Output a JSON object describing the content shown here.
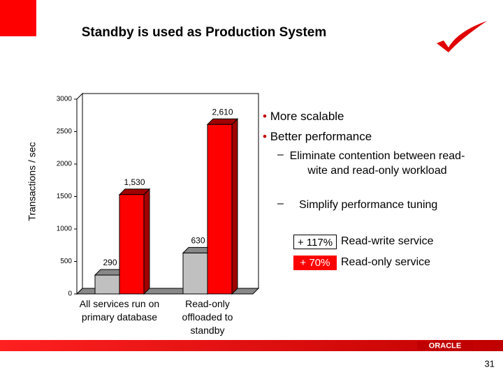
{
  "title": "Standby is used as Production System",
  "bullets": [
    "More scalable",
    "Better performance"
  ],
  "sub_bullets": [
    "Eliminate contention between read-wite and read-only workload",
    "Simplify performance tuning"
  ],
  "callouts": [
    {
      "badge": "+ 117%",
      "text": "Read-write service"
    },
    {
      "badge": "+ 70%",
      "text": "Read-only service"
    }
  ],
  "logo": "ORACLE",
  "page_number": "31",
  "chart_data": {
    "type": "bar",
    "y_label": "Transactions / sec",
    "categories": [
      "All services run on primary database",
      "Read-only offloaded to standby"
    ],
    "series": [
      {
        "color": "#c0c0c0",
        "values": [
          290,
          630
        ]
      },
      {
        "color": "#ff0000",
        "values": [
          1530,
          2610
        ],
        "value_labels": [
          "1,530",
          "2,610"
        ]
      }
    ],
    "ylim": [
      0,
      3000
    ],
    "yticks": [
      0,
      500,
      1000,
      1500,
      2000,
      2500,
      3000
    ]
  }
}
